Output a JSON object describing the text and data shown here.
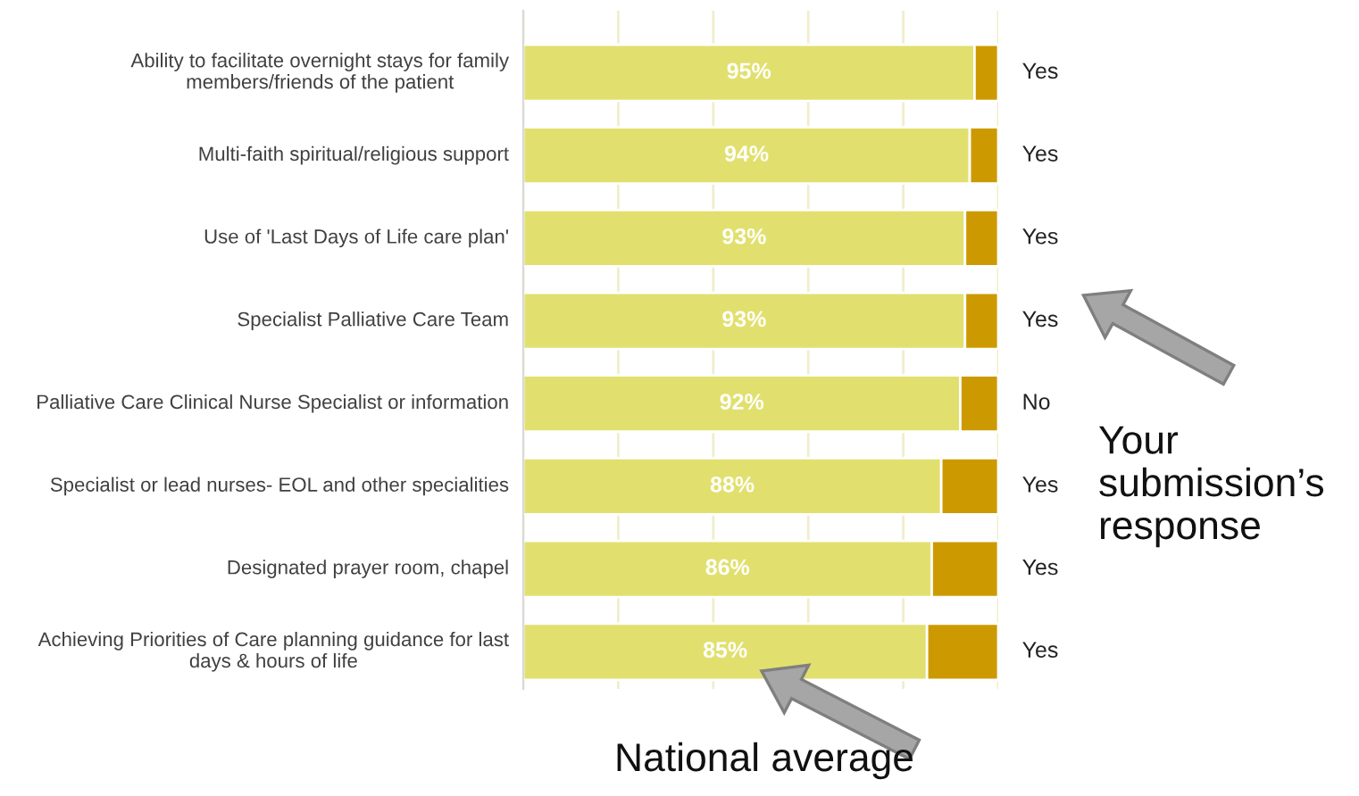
{
  "chart_data": {
    "type": "bar",
    "orientation": "horizontal",
    "stacked": true,
    "categories": [
      "Ability to facilitate overnight stays for family members/friends of the patient",
      "Multi-faith spiritual/religious support",
      "Use of 'Last Days of Life care plan'",
      "Specialist Palliative Care Team",
      "Palliative Care Clinical Nurse Specialist or information",
      "Specialist or lead nurses- EOL and other specialities",
      "Designated prayer room, chapel",
      "Achieving Priorities of Care planning guidance for last days & hours of life"
    ],
    "series": [
      {
        "color": "#e1e06f",
        "values": [
          95,
          94,
          93,
          93,
          92,
          88,
          86,
          85
        ],
        "value_labels": [
          "95%",
          "94%",
          "93%",
          "93%",
          "92%",
          "88%",
          "86%",
          "85%"
        ]
      },
      {
        "color": "#cc9a00",
        "values": [
          5,
          6,
          7,
          7,
          8,
          12,
          14,
          15
        ]
      }
    ],
    "xlim": [
      0,
      100
    ],
    "xticks": [
      {
        "value": 0,
        "label": null
      },
      {
        "value": 20,
        "label": null
      },
      {
        "value": 40,
        "label": null
      },
      {
        "value": 60,
        "label": null
      },
      {
        "value": 80,
        "label": null
      },
      {
        "value": 100,
        "label": null
      }
    ],
    "grid": "x",
    "tick_labels": "y",
    "legend": false,
    "annotations": [
      "Yes",
      "Yes",
      "Yes",
      "Yes",
      "No",
      "Yes",
      "Yes",
      "Yes",
      "Your submission’s response",
      "National average"
    ]
  }
}
